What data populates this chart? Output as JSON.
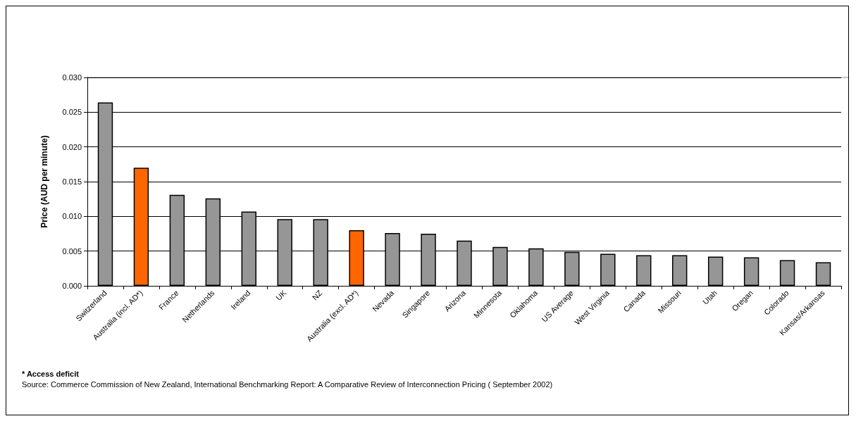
{
  "chart_data": {
    "type": "bar",
    "ylabel": "Price (AUD per minute)",
    "categories": [
      "Switzerland",
      "Australia (incl. AD*)",
      "France",
      "Netherlands",
      "Ireland",
      "UK",
      "NZ",
      "Australia (excl. AD*)",
      "Nevada",
      "Singapore",
      "Arizona",
      "Minnesota",
      "Oklahoma",
      "US Average",
      "West Virginia",
      "Canada",
      "Missouri",
      "Utah",
      "Oregan",
      "Colorado",
      "Kansas/Arkansas"
    ],
    "values": [
      0.0264,
      0.017,
      0.0131,
      0.0126,
      0.0107,
      0.0096,
      0.0096,
      0.008,
      0.0076,
      0.0075,
      0.0065,
      0.0056,
      0.0054,
      0.0049,
      0.0046,
      0.0044,
      0.0044,
      0.0042,
      0.0041,
      0.0037,
      0.0034
    ],
    "colors": [
      "#969696",
      "#ff6600",
      "#969696",
      "#969696",
      "#969696",
      "#969696",
      "#969696",
      "#ff6600",
      "#969696",
      "#969696",
      "#969696",
      "#969696",
      "#969696",
      "#969696",
      "#969696",
      "#969696",
      "#969696",
      "#969696",
      "#969696",
      "#969696",
      "#969696"
    ],
    "ylim": [
      0,
      0.03
    ],
    "yticks": [
      {
        "value": 0,
        "label": "0.000"
      },
      {
        "value": 0.005,
        "label": "0.005"
      },
      {
        "value": 0.01,
        "label": "0.010"
      },
      {
        "value": 0.015,
        "label": "0.015"
      },
      {
        "value": 0.02,
        "label": "0.020"
      },
      {
        "value": 0.025,
        "label": "0.025"
      },
      {
        "value": 0.03,
        "label": "0.030"
      }
    ],
    "grid": "y",
    "annotations": [
      "* Access deficit",
      "Source: Commerce Commission of New Zealand, International Benchmarking Report: A Comparative Review of Interconnection Pricing ( September 2002)"
    ]
  }
}
